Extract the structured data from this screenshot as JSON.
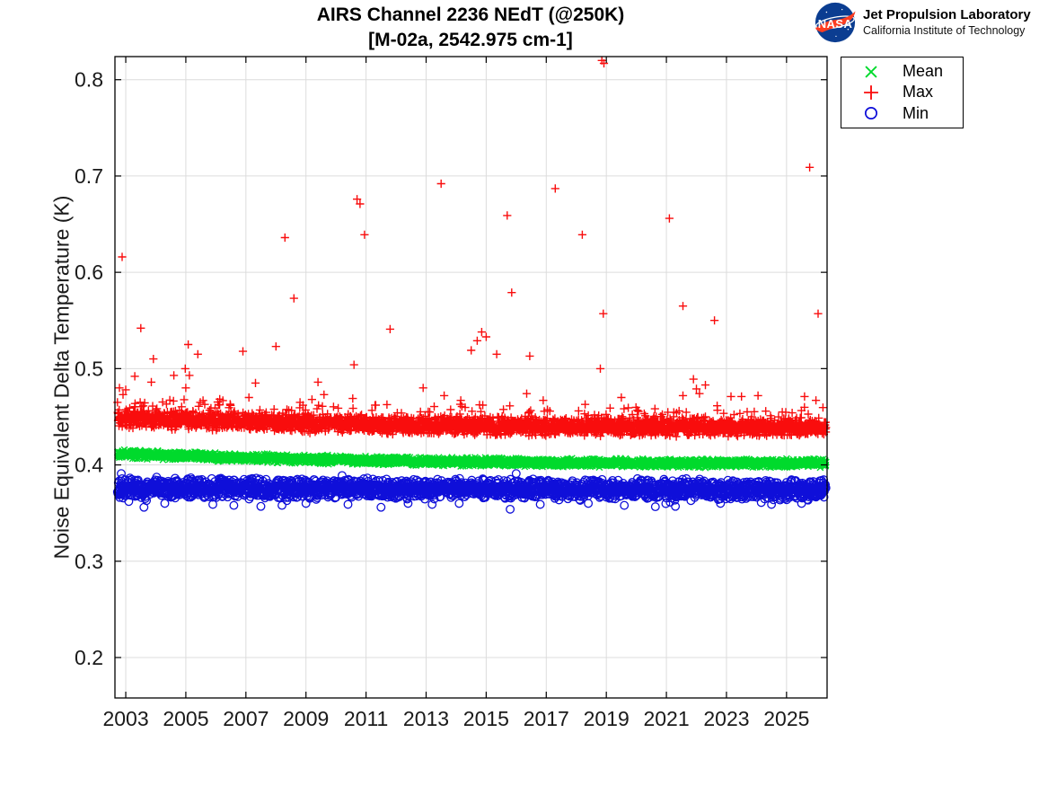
{
  "branding": {
    "org": "Jet Propulsion Laboratory",
    "affiliation": "California Institute of Technology",
    "logo": "nasa-meatball"
  },
  "chart_data": {
    "type": "scatter",
    "title": "AIRS Channel 2236 NEdT (@250K)",
    "subtitle": "[M-02a, 2542.975 cm-1]",
    "xlabel": "",
    "ylabel": "Noise Equivalent Delta Temperature (K)",
    "xlim": [
      2002.64,
      2026.35
    ],
    "ylim": [
      0.158,
      0.824
    ],
    "xticks": [
      2003,
      2005,
      2007,
      2009,
      2011,
      2013,
      2015,
      2017,
      2019,
      2021,
      2023,
      2025
    ],
    "yticks": [
      0.2,
      0.3,
      0.4,
      0.5,
      0.6,
      0.7,
      0.8
    ],
    "grid": true,
    "legend_position": "top-right",
    "data_start": 2002.72,
    "data_end": 2026.32,
    "colors": {
      "axis": "#000000",
      "grid": "#dcdcdc",
      "tick_text": "#1a1a1a"
    },
    "mean_trend": {
      "x": [
        2002.72,
        2005,
        2008,
        2011,
        2014,
        2017,
        2020,
        2023,
        2026.32
      ],
      "v": [
        0.4115,
        0.4092,
        0.4066,
        0.4046,
        0.4032,
        0.4026,
        0.402,
        0.4017,
        0.402
      ]
    },
    "min_trend": {
      "x": [
        2002.72,
        2008,
        2014,
        2020,
        2026.32
      ],
      "v": [
        0.3762,
        0.3756,
        0.3752,
        0.3748,
        0.3742
      ]
    },
    "series": [
      {
        "name": "Mean",
        "marker": "x",
        "color": "#00da2c",
        "n": 3000,
        "noise": 0.005,
        "trend": "mean_trend",
        "offset": 0,
        "outliers": []
      },
      {
        "name": "Max",
        "marker": "+",
        "color": "#f90d0d",
        "n": 3000,
        "noise": 0.0105,
        "trend": "mean_trend",
        "offset": 0.0372,
        "spike_prob": 0.14,
        "spike_amp": 0.02,
        "outliers": [
          [
            2002.79,
            0.48
          ],
          [
            2002.88,
            0.616
          ],
          [
            2003.0,
            0.478
          ],
          [
            2003.3,
            0.492
          ],
          [
            2003.5,
            0.542
          ],
          [
            2003.85,
            0.486
          ],
          [
            2003.92,
            0.51
          ],
          [
            2004.6,
            0.493
          ],
          [
            2004.98,
            0.5
          ],
          [
            2005.0,
            0.48
          ],
          [
            2005.08,
            0.525
          ],
          [
            2005.12,
            0.493
          ],
          [
            2005.4,
            0.515
          ],
          [
            2006.9,
            0.518
          ],
          [
            2007.1,
            0.47
          ],
          [
            2007.32,
            0.485
          ],
          [
            2008.0,
            0.523
          ],
          [
            2008.3,
            0.636
          ],
          [
            2008.6,
            0.573
          ],
          [
            2008.9,
            0.462
          ],
          [
            2009.2,
            0.468
          ],
          [
            2009.4,
            0.486
          ],
          [
            2009.6,
            0.473
          ],
          [
            2010.6,
            0.504
          ],
          [
            2010.7,
            0.676
          ],
          [
            2010.8,
            0.671
          ],
          [
            2010.95,
            0.639
          ],
          [
            2011.3,
            0.462
          ],
          [
            2011.8,
            0.541
          ],
          [
            2012.9,
            0.48
          ],
          [
            2013.5,
            0.692
          ],
          [
            2013.6,
            0.472
          ],
          [
            2014.5,
            0.519
          ],
          [
            2014.7,
            0.529
          ],
          [
            2014.85,
            0.538
          ],
          [
            2015.0,
            0.533
          ],
          [
            2015.35,
            0.515
          ],
          [
            2015.7,
            0.659
          ],
          [
            2015.85,
            0.579
          ],
          [
            2016.35,
            0.474
          ],
          [
            2016.45,
            0.513
          ],
          [
            2016.9,
            0.467
          ],
          [
            2017.3,
            0.687
          ],
          [
            2018.2,
            0.639
          ],
          [
            2018.85,
            0.82
          ],
          [
            2018.92,
            0.817
          ],
          [
            2018.9,
            0.557
          ],
          [
            2018.8,
            0.5
          ],
          [
            2019.5,
            0.47
          ],
          [
            2021.1,
            0.656
          ],
          [
            2021.55,
            0.565
          ],
          [
            2021.55,
            0.472
          ],
          [
            2021.9,
            0.489
          ],
          [
            2022.0,
            0.479
          ],
          [
            2022.1,
            0.474
          ],
          [
            2022.3,
            0.483
          ],
          [
            2022.6,
            0.55
          ],
          [
            2023.15,
            0.471
          ],
          [
            2023.5,
            0.471
          ],
          [
            2024.05,
            0.472
          ],
          [
            2025.6,
            0.471
          ],
          [
            2025.77,
            0.709
          ],
          [
            2025.98,
            0.467
          ],
          [
            2026.05,
            0.557
          ]
        ]
      },
      {
        "name": "Min",
        "marker": "o",
        "color": "#0f0fd9",
        "n": 2600,
        "noise": 0.0115,
        "trend": "min_trend",
        "offset": 0,
        "dip_prob": 0.02,
        "dip_amp": 0.012,
        "outliers": [
          [
            2002.85,
            0.391
          ],
          [
            2003.1,
            0.362
          ],
          [
            2004.3,
            0.36
          ],
          [
            2005.9,
            0.359
          ],
          [
            2006.6,
            0.358
          ],
          [
            2007.5,
            0.357
          ],
          [
            2008.2,
            0.358
          ],
          [
            2009.0,
            0.36
          ],
          [
            2010.2,
            0.389
          ],
          [
            2010.4,
            0.359
          ],
          [
            2011.5,
            0.356
          ],
          [
            2012.4,
            0.36
          ],
          [
            2013.2,
            0.359
          ],
          [
            2014.1,
            0.36
          ],
          [
            2015.8,
            0.354
          ],
          [
            2016.0,
            0.391
          ],
          [
            2016.8,
            0.359
          ],
          [
            2018.4,
            0.36
          ],
          [
            2019.6,
            0.358
          ],
          [
            2021.3,
            0.357
          ],
          [
            2022.8,
            0.36
          ],
          [
            2024.5,
            0.359
          ],
          [
            2025.5,
            0.36
          ]
        ]
      }
    ]
  }
}
